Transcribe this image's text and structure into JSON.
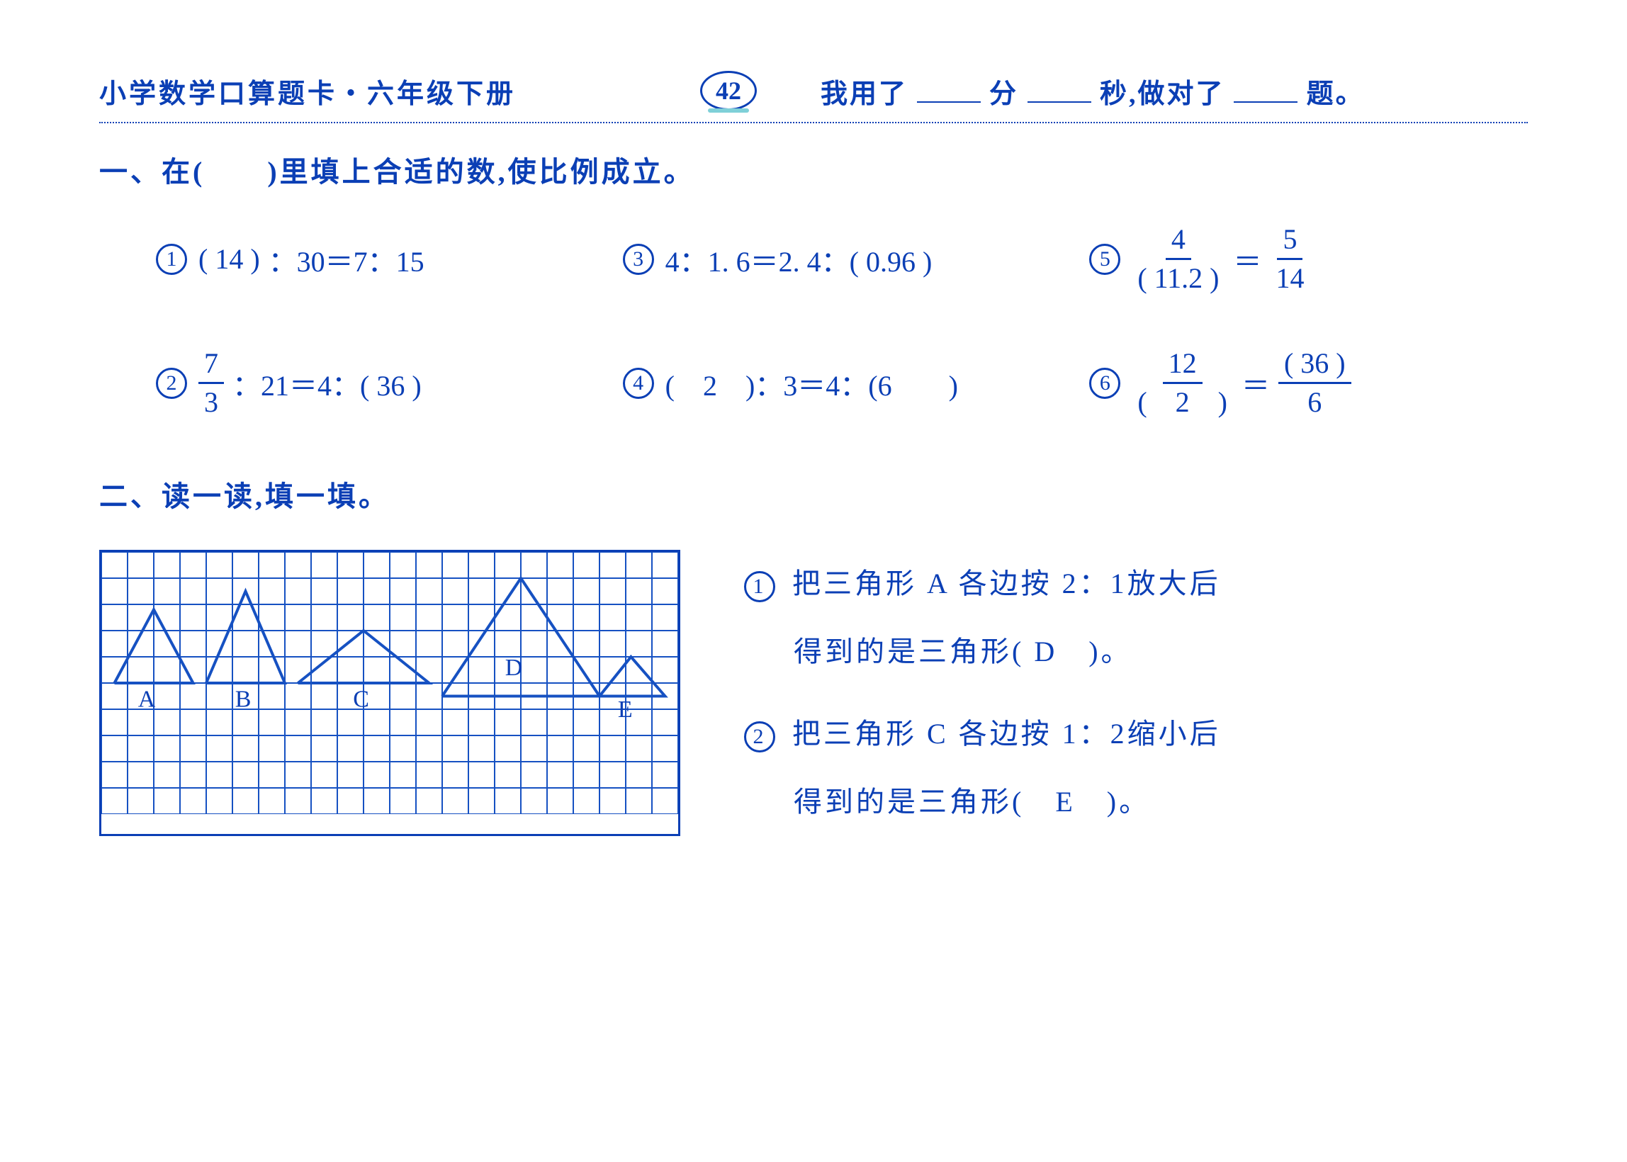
{
  "header": {
    "title": "小学数学口算题卡・六年级下册",
    "page_number": "42",
    "right_template_prefix": "我用了",
    "min_label": "分",
    "sec_label": "秒,做对了",
    "ti_label": "题。"
  },
  "section1": {
    "title": "一、在(　　)里填上合适的数,使比例成立。",
    "problems": {
      "p1": {
        "num": "1",
        "lhs_paren": "(  14  )",
        "rest": "：30＝7：15"
      },
      "p2": {
        "num": "2",
        "frac_num": "7",
        "frac_den": "3",
        "rest": "：21＝4：(  36  )"
      },
      "p3": {
        "num": "3",
        "text": "4：1. 6＝2. 4：( 0.96 )"
      },
      "p4": {
        "num": "4",
        "text": "(　2　)：3＝4：(6　　)"
      },
      "p5": {
        "num": "5",
        "lfrac_num": "4",
        "lfrac_den": "(  11.2 )",
        "eq": "＝",
        "rfrac_num": "5",
        "rfrac_den": "14"
      },
      "p6": {
        "num": "6",
        "lfrac_num": "12",
        "lfrac_den": "(　2　)",
        "eq": "＝",
        "rfrac_num": "(  36  )",
        "rfrac_den": "6"
      }
    }
  },
  "section2": {
    "title": "二、读一读,填一填。",
    "grid": {
      "cols": 22,
      "rows": 10,
      "cell": 37,
      "stroke": "#1651c2",
      "triangles": [
        {
          "label": "A",
          "pts": [
            [
              0.5,
              5
            ],
            [
              2,
              2.2
            ],
            [
              3.5,
              5
            ]
          ],
          "lx": 1.4,
          "ly": 5.9
        },
        {
          "label": "B",
          "pts": [
            [
              4,
              5
            ],
            [
              5.5,
              1.5
            ],
            [
              7,
              5
            ]
          ],
          "lx": 5.1,
          "ly": 5.9
        },
        {
          "label": "C",
          "pts": [
            [
              7.5,
              5
            ],
            [
              10,
              3
            ],
            [
              12.5,
              5
            ]
          ],
          "lx": 9.6,
          "ly": 5.9
        },
        {
          "label": "D",
          "pts": [
            [
              13,
              5.5
            ],
            [
              16,
              1
            ],
            [
              19,
              5.5
            ]
          ],
          "lx": 15.4,
          "ly": 4.7
        },
        {
          "label": "E",
          "pts": [
            [
              19,
              5.5
            ],
            [
              20.2,
              4
            ],
            [
              21.5,
              5.5
            ]
          ],
          "lx": 19.7,
          "ly": 6.3
        }
      ]
    },
    "questions": {
      "q1_num": "1",
      "q1_line1": "把三角形 A 各边按 2：1放大后",
      "q1_line2_pre": "得到的是三角形(",
      "q1_ans": "  D　",
      "q1_line2_post": ")。",
      "q2_num": "2",
      "q2_line1": "把三角形 C 各边按 1：2缩小后",
      "q2_line2_pre": "得到的是三角形(",
      "q2_ans": "　E　",
      "q2_line2_post": ")。"
    }
  },
  "colors": {
    "main": "#0b3fb5",
    "accent": "#7fd0d8",
    "grid": "#1651c2",
    "bg": "#ffffff"
  }
}
